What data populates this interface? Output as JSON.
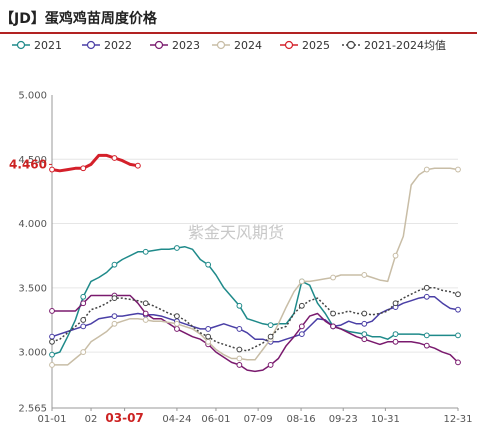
{
  "title": "【JD】蛋鸡鸡苗周度价格",
  "watermark": "紫金天风期货",
  "chart_data": {
    "type": "line",
    "title": "【JD】蛋鸡鸡苗周度价格",
    "ylim": [
      2.565,
      5.0
    ],
    "yticks": [
      "5.000",
      "4.500",
      "4.000",
      "3.500",
      "3.000",
      "2.565"
    ],
    "ytick_values": [
      5.0,
      4.5,
      4.0,
      3.5,
      3.0,
      2.565
    ],
    "highlight_y": {
      "label": "4.460",
      "value": 4.46
    },
    "x_range": [
      1,
      53
    ],
    "x_labels": [
      "01-01",
      "02",
      "03-07",
      "04-24",
      "06-01",
      "07-09",
      "08-16",
      "09-23",
      "10-31",
      "12-31"
    ],
    "x_label_weeks": [
      1,
      6,
      10.3,
      17,
      22,
      27.4,
      32.9,
      38.3,
      43.7,
      53
    ],
    "x_highlight": "03-07",
    "grid": true,
    "legend_position": "top",
    "series": [
      {
        "name": "2021",
        "color": "#1f8a8a",
        "marker": "circle",
        "x": [
          1,
          2,
          3,
          4,
          5,
          6,
          7,
          8,
          9,
          10,
          11,
          12,
          13,
          14,
          15,
          16,
          17,
          18,
          19,
          20,
          21,
          22,
          23,
          24,
          25,
          26,
          27,
          28,
          29,
          30,
          31,
          32,
          33,
          34,
          35,
          36,
          37,
          38,
          39,
          40,
          41,
          42,
          43,
          44,
          45,
          46,
          47,
          48,
          49,
          50,
          51,
          52,
          53
        ],
        "y": [
          2.98,
          3.0,
          3.12,
          3.25,
          3.43,
          3.55,
          3.58,
          3.62,
          3.68,
          3.72,
          3.75,
          3.78,
          3.78,
          3.79,
          3.8,
          3.8,
          3.81,
          3.82,
          3.8,
          3.72,
          3.68,
          3.6,
          3.5,
          3.43,
          3.36,
          3.26,
          3.24,
          3.22,
          3.21,
          3.22,
          3.22,
          3.3,
          3.55,
          3.52,
          3.38,
          3.3,
          3.2,
          3.18,
          3.16,
          3.15,
          3.14,
          3.12,
          3.12,
          3.1,
          3.14,
          3.14,
          3.14,
          3.14,
          3.13,
          3.13,
          3.13,
          3.13,
          3.13
        ]
      },
      {
        "name": "2022",
        "color": "#4a3fa6",
        "marker": "circle",
        "x": [
          1,
          2,
          3,
          4,
          5,
          6,
          7,
          8,
          9,
          10,
          11,
          12,
          13,
          14,
          15,
          16,
          17,
          18,
          19,
          20,
          21,
          22,
          23,
          24,
          25,
          26,
          27,
          28,
          29,
          30,
          31,
          32,
          33,
          34,
          35,
          36,
          37,
          38,
          39,
          40,
          41,
          42,
          43,
          44,
          45,
          46,
          47,
          48,
          49,
          50,
          51,
          52,
          53
        ],
        "y": [
          3.12,
          3.14,
          3.16,
          3.18,
          3.2,
          3.22,
          3.26,
          3.27,
          3.28,
          3.28,
          3.29,
          3.3,
          3.29,
          3.29,
          3.28,
          3.26,
          3.24,
          3.22,
          3.2,
          3.18,
          3.18,
          3.2,
          3.22,
          3.2,
          3.18,
          3.15,
          3.1,
          3.1,
          3.08,
          3.08,
          3.1,
          3.12,
          3.14,
          3.2,
          3.26,
          3.25,
          3.2,
          3.21,
          3.24,
          3.22,
          3.22,
          3.24,
          3.3,
          3.33,
          3.35,
          3.38,
          3.4,
          3.42,
          3.43,
          3.43,
          3.38,
          3.34,
          3.33
        ]
      },
      {
        "name": "2023",
        "color": "#7a1a6e",
        "marker": "circle",
        "x": [
          1,
          2,
          3,
          4,
          5,
          6,
          7,
          8,
          9,
          10,
          11,
          12,
          13,
          14,
          15,
          16,
          17,
          18,
          19,
          20,
          21,
          22,
          23,
          24,
          25,
          26,
          27,
          28,
          29,
          30,
          31,
          32,
          33,
          34,
          35,
          36,
          37,
          38,
          39,
          40,
          41,
          42,
          43,
          44,
          45,
          46,
          47,
          48,
          49,
          50,
          51,
          52,
          53
        ],
        "y": [
          3.32,
          3.32,
          3.32,
          3.32,
          3.38,
          3.44,
          3.44,
          3.44,
          3.44,
          3.44,
          3.44,
          3.38,
          3.3,
          3.26,
          3.26,
          3.22,
          3.18,
          3.15,
          3.12,
          3.1,
          3.06,
          3.0,
          2.96,
          2.92,
          2.9,
          2.86,
          2.85,
          2.86,
          2.9,
          2.95,
          3.05,
          3.12,
          3.2,
          3.28,
          3.3,
          3.24,
          3.2,
          3.18,
          3.15,
          3.12,
          3.1,
          3.08,
          3.06,
          3.08,
          3.08,
          3.08,
          3.08,
          3.07,
          3.05,
          3.03,
          3.0,
          2.98,
          2.92
        ]
      },
      {
        "name": "2024",
        "color": "#c8bda6",
        "marker": "circle",
        "x": [
          1,
          2,
          3,
          4,
          5,
          6,
          7,
          8,
          9,
          10,
          11,
          12,
          13,
          14,
          15,
          16,
          17,
          18,
          19,
          20,
          21,
          22,
          23,
          24,
          25,
          26,
          27,
          28,
          29,
          30,
          31,
          32,
          33,
          34,
          35,
          36,
          37,
          38,
          39,
          40,
          41,
          42,
          43,
          44,
          45,
          46,
          47,
          48,
          49,
          50,
          51,
          52,
          53
        ],
        "y": [
          2.9,
          2.9,
          2.9,
          2.95,
          3.0,
          3.08,
          3.12,
          3.16,
          3.22,
          3.24,
          3.26,
          3.26,
          3.25,
          3.24,
          3.24,
          3.23,
          3.22,
          3.2,
          3.18,
          3.14,
          3.08,
          3.02,
          2.98,
          2.95,
          2.95,
          2.94,
          2.94,
          3.02,
          3.1,
          3.22,
          3.35,
          3.47,
          3.55,
          3.55,
          3.56,
          3.57,
          3.58,
          3.6,
          3.6,
          3.6,
          3.6,
          3.58,
          3.56,
          3.55,
          3.75,
          3.9,
          4.3,
          4.38,
          4.42,
          4.43,
          4.43,
          4.43,
          4.42
        ]
      },
      {
        "name": "2025",
        "color": "#d4202a",
        "marker": "circle",
        "x": [
          1,
          2,
          3,
          4,
          5,
          6,
          7,
          8,
          9,
          10,
          11,
          12
        ],
        "y": [
          4.42,
          4.41,
          4.42,
          4.43,
          4.43,
          4.46,
          4.53,
          4.53,
          4.51,
          4.49,
          4.46,
          4.45
        ]
      },
      {
        "name": "2021-2024均值",
        "color": "#444444",
        "marker": "circle",
        "dashed": true,
        "x": [
          1,
          2,
          3,
          4,
          5,
          6,
          7,
          8,
          9,
          10,
          11,
          12,
          13,
          14,
          15,
          16,
          17,
          18,
          19,
          20,
          21,
          22,
          23,
          24,
          25,
          26,
          27,
          28,
          29,
          30,
          31,
          32,
          33,
          34,
          35,
          36,
          37,
          38,
          39,
          40,
          41,
          42,
          43,
          44,
          45,
          46,
          47,
          48,
          49,
          50,
          51,
          52,
          53
        ],
        "y": [
          3.08,
          3.1,
          3.15,
          3.2,
          3.25,
          3.33,
          3.35,
          3.38,
          3.42,
          3.42,
          3.41,
          3.4,
          3.38,
          3.36,
          3.33,
          3.3,
          3.28,
          3.25,
          3.2,
          3.15,
          3.12,
          3.08,
          3.06,
          3.04,
          3.02,
          3.01,
          3.04,
          3.07,
          3.12,
          3.18,
          3.2,
          3.3,
          3.36,
          3.4,
          3.42,
          3.36,
          3.3,
          3.3,
          3.32,
          3.3,
          3.3,
          3.29,
          3.3,
          3.32,
          3.38,
          3.42,
          3.45,
          3.48,
          3.5,
          3.5,
          3.48,
          3.47,
          3.45
        ]
      }
    ]
  }
}
